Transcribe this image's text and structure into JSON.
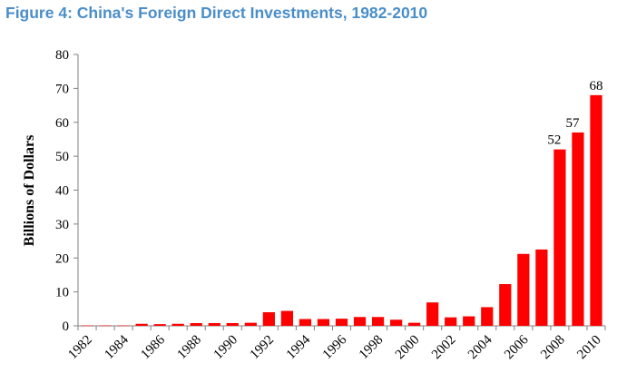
{
  "figure": {
    "title": "Figure 4: China's Foreign Direct Investments, 1982-2010"
  },
  "chart_data": {
    "type": "bar",
    "categories": [
      1982,
      1983,
      1984,
      1985,
      1986,
      1987,
      1988,
      1989,
      1990,
      1991,
      1992,
      1993,
      1994,
      1995,
      1996,
      1997,
      1998,
      1999,
      2000,
      2001,
      2002,
      2003,
      2004,
      2005,
      2006,
      2007,
      2008,
      2009,
      2010
    ],
    "values": [
      0.1,
      0.1,
      0.1,
      0.6,
      0.5,
      0.6,
      0.8,
      0.8,
      0.8,
      0.9,
      4.0,
      4.4,
      2.0,
      2.0,
      2.1,
      2.6,
      2.6,
      1.8,
      0.9,
      6.9,
      2.5,
      2.8,
      5.5,
      12.3,
      21.2,
      22.5,
      52,
      57,
      68
    ],
    "bar_color": "#ff0000",
    "tick_label_years": [
      1982,
      1984,
      1986,
      1988,
      1990,
      1992,
      1994,
      1996,
      1998,
      2000,
      2002,
      2004,
      2006,
      2008,
      2010
    ],
    "ylabel": "Billions of Dollars",
    "xlabel": "",
    "ylim": [
      0,
      80
    ],
    "yticks": [
      0,
      10,
      20,
      30,
      40,
      50,
      60,
      70,
      80
    ],
    "data_labels": [
      {
        "year": 2008,
        "text": "52"
      },
      {
        "year": 2009,
        "text": "57"
      },
      {
        "year": 2010,
        "text": "68"
      }
    ],
    "grid": false,
    "legend": "none"
  }
}
